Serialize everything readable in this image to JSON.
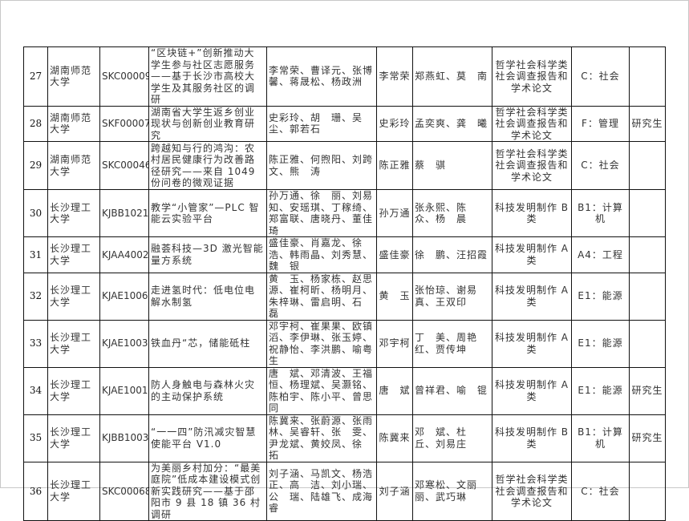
{
  "rows": [
    {
      "no": "27",
      "school": "湖南师范大学",
      "code": "SKC00009",
      "title": "“区块链+”创新推动大学生参与社区志愿服务——基于长沙市高校大学生及其服务社区的调研",
      "members": "李常荣、曹译元、张博馨、蒋晟松、杨政洲",
      "leader": "李常荣",
      "teachers": "郑燕虹、莫　南",
      "category": "哲学社会科学类社会调查报告和学术论文",
      "group": "C：社会",
      "level": ""
    },
    {
      "no": "28",
      "school": "湖南师范大学",
      "code": "SKF00007",
      "title": "湖南省大学生返乡创业现状与创新创业教育研究",
      "members": "史彩玲、胡　珊、吴　尘、郭若石",
      "leader": "史彩玲",
      "teachers": "孟奕爽、龚　曦",
      "category": "哲学社会科学类社会调查报告和学术论文",
      "group": "F：管理",
      "level": "研究生"
    },
    {
      "no": "29",
      "school": "湖南师范大学",
      "code": "SKC00046",
      "title": "跨越知与行的鸿沟：农村居民健康行为改善路径研究——来自 1049 份问卷的微观证据",
      "members": "陈正雅、何煦阳、刘跨文、熊　涛",
      "leader": "陈正雅",
      "teachers": "蔡　骐",
      "category": "哲学社会科学类社会调查报告和学术论文",
      "group": "C：社会",
      "level": ""
    },
    {
      "no": "30",
      "school": "长沙理工大学",
      "code": "KJBB1021",
      "title": "教学“小管家”—PLC 智能云实验平台",
      "members": "孙万通、徐　丽、刘易知、安瑶琪、丁稼绮、郑富联、唐晓丹、董佳琦",
      "leader": "孙万通",
      "teachers": "张永熙、陈　众、杨　晨",
      "category": "科技发明制作 B 类",
      "group": "B1：计算机",
      "level": ""
    },
    {
      "no": "31",
      "school": "长沙理工大学",
      "code": "KJAA4002",
      "title": "融荟科技—3D 激光智能量方系统",
      "members": "盛佳豪、肖嘉龙、徐　浩、韩雨晶、刘秀慧、魏　银",
      "leader": "盛佳豪",
      "teachers": "徐　鹏、汪招霞",
      "category": "科技发明制作 A 类",
      "group": "A4：工程",
      "level": ""
    },
    {
      "no": "32",
      "school": "长沙理工大学",
      "code": "KJAE1006",
      "title": "走进氢时代：低电位电解水制氢",
      "members": "黄　玉、杨家栋、赵思源、崔柯昕、杨明月、朱梓琳、雷启明、石　磊",
      "leader": "黄　玉",
      "teachers": "张怡琼、谢易真、王双印",
      "category": "科技发明制作 A 类",
      "group": "E1：能源",
      "level": ""
    },
    {
      "no": "33",
      "school": "长沙理工大学",
      "code": "KJAE1003",
      "title": "铁血丹“芯，储能砥柱",
      "members": "邓宇柯、崔果果、欧镇滔、李伊琳、张玉婷、祝静怡、李洪鹏、喻粤生",
      "leader": "邓宇柯",
      "teachers": "丁　美、周艳红、贾传坤",
      "category": "科技发明制作 A 类",
      "group": "E1：能源",
      "level": ""
    },
    {
      "no": "34",
      "school": "长沙理工大学",
      "code": "KJAE1001",
      "title": "防人身触电与森林火灾的主动保护系统",
      "members": "唐　斌、邓清波、王福恒、杨理斌、吴灏铭、陈柏宇、陈小平、曾思同",
      "leader": "唐　斌",
      "teachers": "曾祥君、喻　锟",
      "category": "科技发明制作 A 类",
      "group": "E1：能源",
      "level": "研究生"
    },
    {
      "no": "35",
      "school": "长沙理工大学",
      "code": "KJBB1003",
      "title": "“一一四”防汛减灾智慧使能平台 V1.0",
      "members": "陈冀来、张蔚源、张雨林、吴睿轩、张　雯、尹龙斌、黄姣凤、徐　拓",
      "leader": "陈冀来",
      "teachers": "邓　斌、杜　丘、刘易庄",
      "category": "科技发明制作 B 类",
      "group": "B1：计算机",
      "level": "研究生"
    },
    {
      "no": "36",
      "school": "长沙理工大学",
      "code": "SKC00068",
      "title": "为美丽乡村加分：“最美庭院”低成本建设模式创新实践研究——基于邵阳市 9 县 18 镇 36 村调研",
      "members": "刘子涵、马凯文、杨浩正、高　洁、刘小瑞、公　瑞、陆雄飞、成海睿",
      "leader": "刘子涵",
      "teachers": "邓寒松、文丽丽、武巧琳",
      "category": "哲学社会科学类社会调查报告和学术论文",
      "group": "C：社会",
      "level": ""
    }
  ]
}
